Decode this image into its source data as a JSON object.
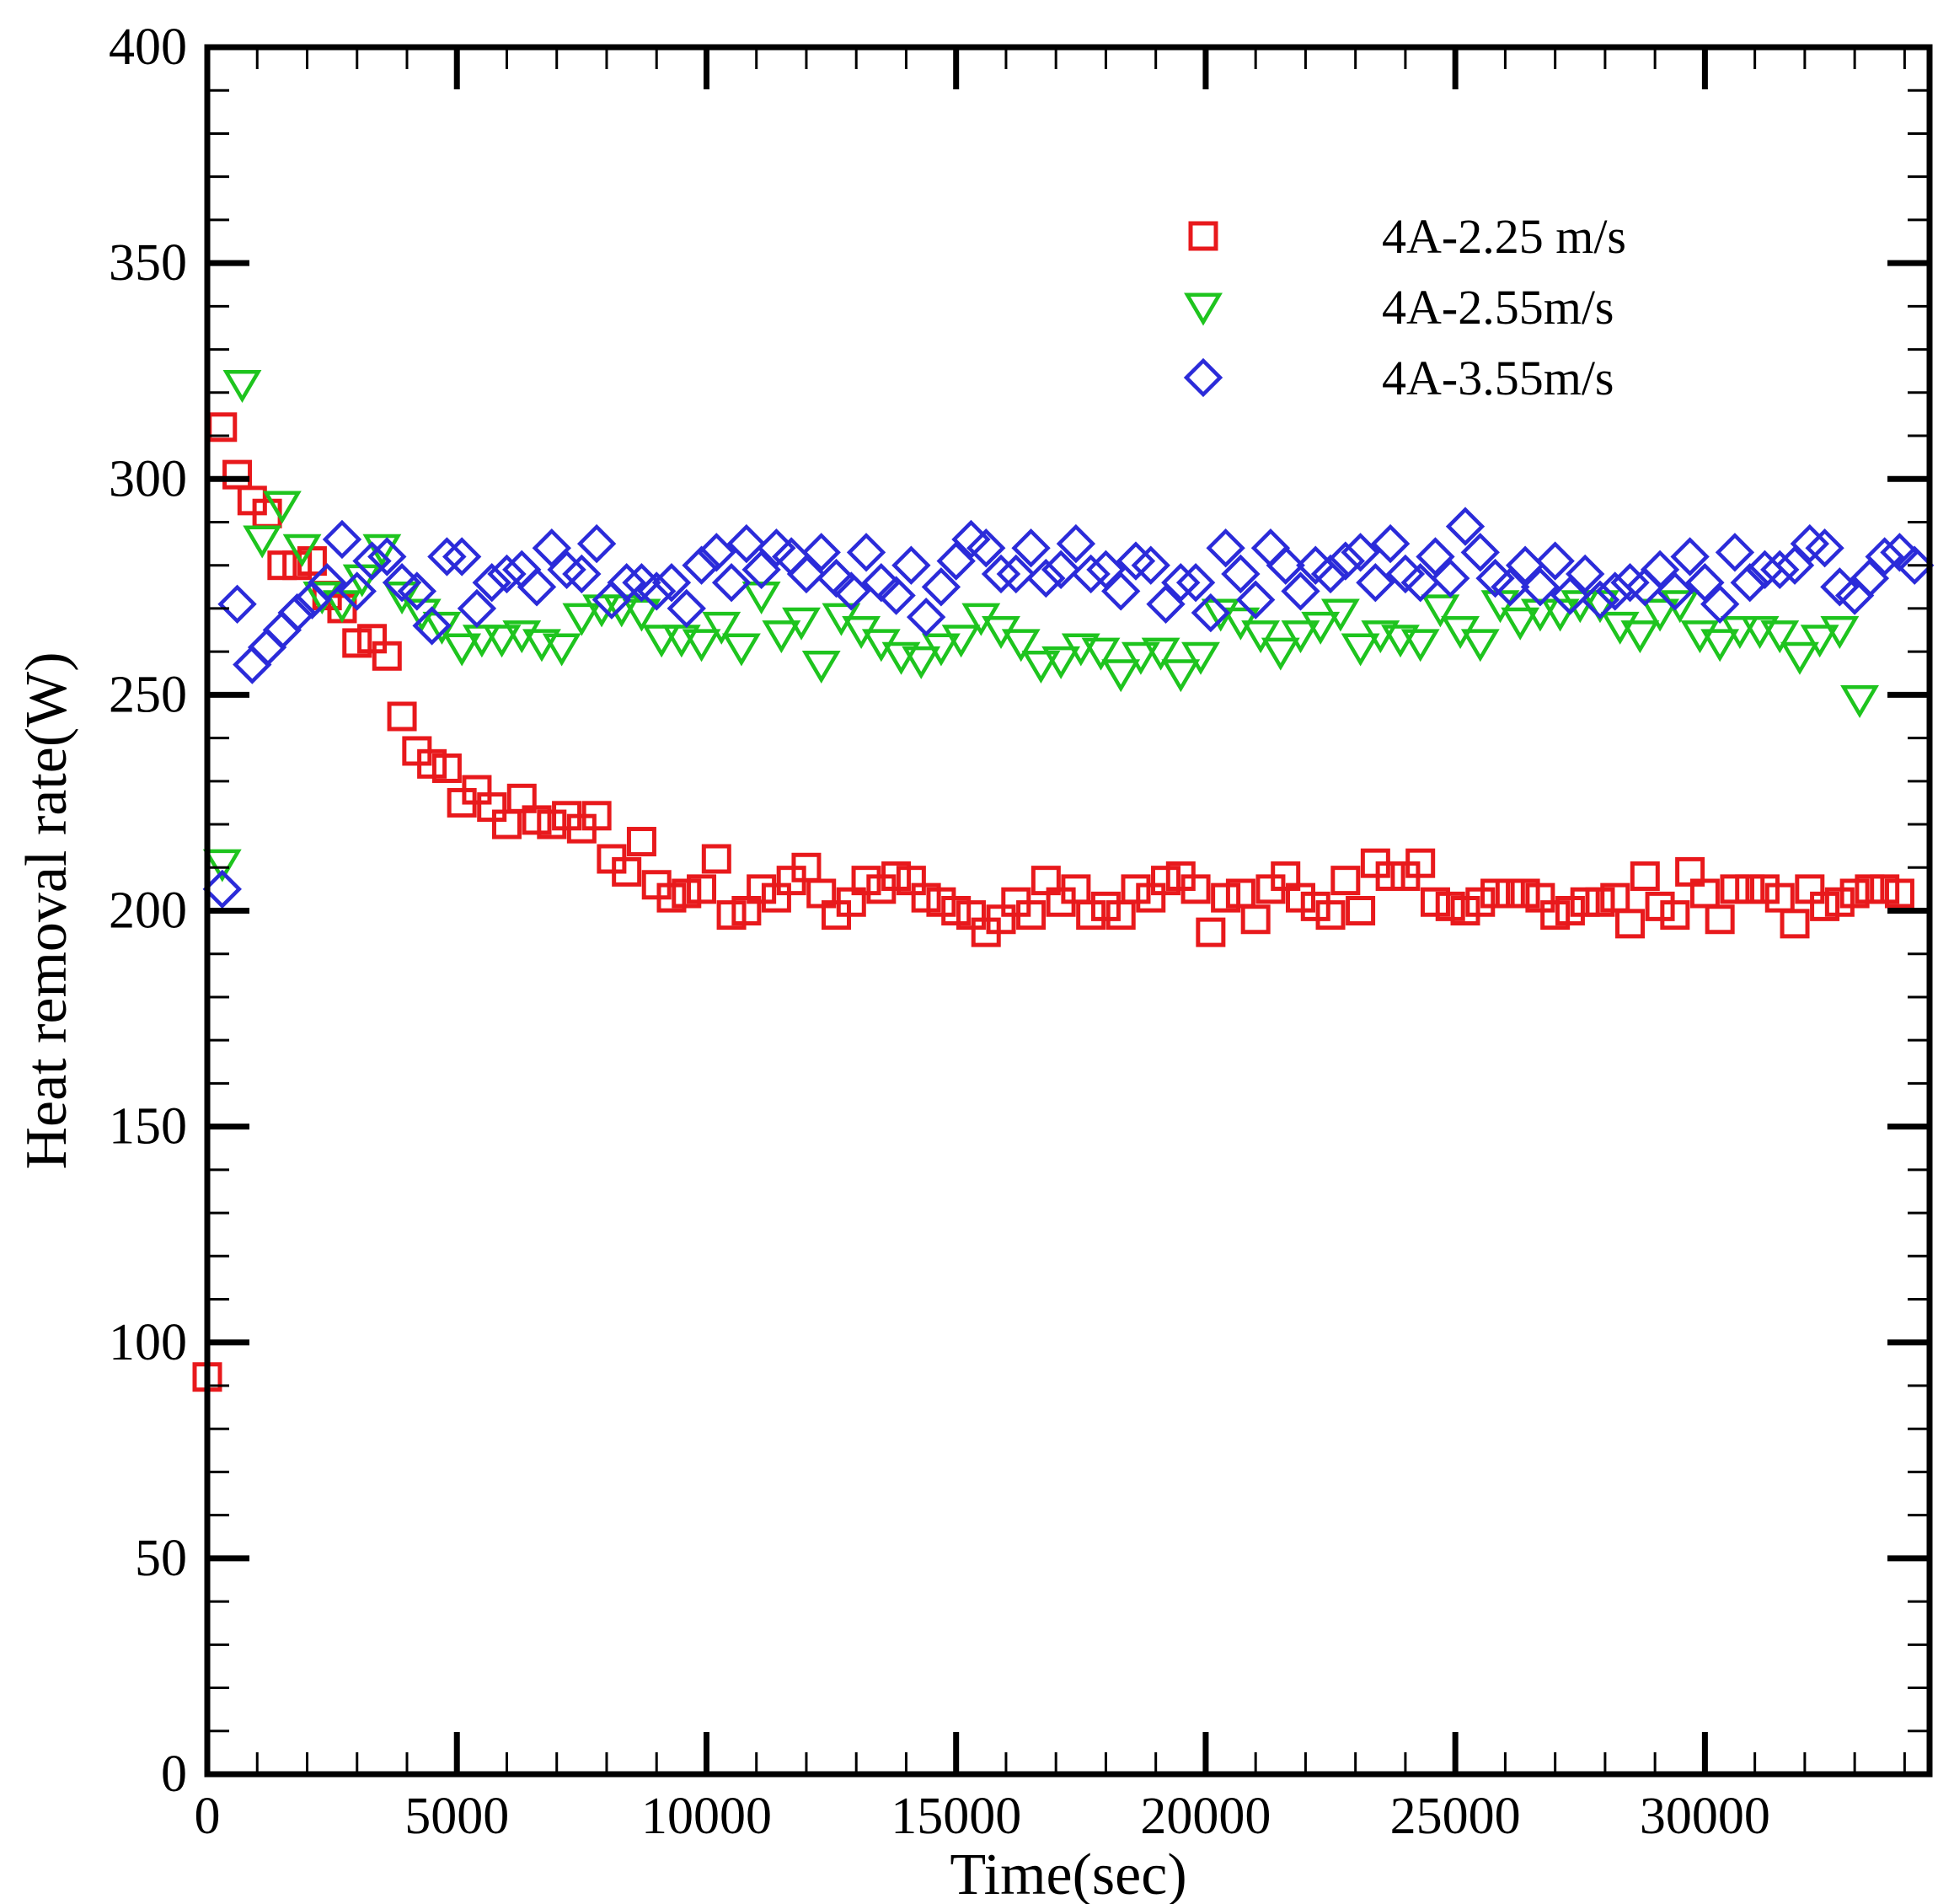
{
  "chart_data": {
    "type": "scatter",
    "xlabel": "Time(sec)",
    "ylabel": "Heat removal rate(W)",
    "xlim": [
      0,
      34500
    ],
    "ylim": [
      0,
      400
    ],
    "x_ticks": [
      0,
      5000,
      10000,
      15000,
      20000,
      25000,
      30000
    ],
    "y_ticks": [
      0,
      50,
      100,
      150,
      200,
      250,
      300,
      350,
      400
    ],
    "grid": false,
    "legend_position": "top-right",
    "series": [
      {
        "name": "4A-2.25 m/s",
        "marker": "square",
        "color": "#e8191c",
        "points": [
          [
            0,
            92
          ],
          [
            300,
            312
          ],
          [
            600,
            301
          ],
          [
            900,
            295
          ],
          [
            1200,
            292
          ],
          [
            1500,
            280
          ],
          [
            1800,
            280
          ],
          [
            2100,
            281
          ],
          [
            2400,
            273
          ],
          [
            2700,
            270
          ],
          [
            3000,
            262
          ],
          [
            3300,
            263
          ],
          [
            3600,
            259
          ],
          [
            3900,
            245
          ],
          [
            4200,
            237
          ],
          [
            4500,
            234
          ],
          [
            4800,
            233
          ],
          [
            5100,
            225
          ],
          [
            5400,
            228
          ],
          [
            5700,
            224
          ],
          [
            6000,
            220
          ],
          [
            6300,
            226
          ],
          [
            6600,
            221
          ],
          [
            6900,
            220
          ],
          [
            7200,
            222
          ],
          [
            7500,
            219
          ],
          [
            7800,
            222
          ],
          [
            8100,
            212
          ],
          [
            8400,
            209
          ],
          [
            8700,
            216
          ],
          [
            9000,
            206
          ],
          [
            9300,
            203
          ],
          [
            9600,
            204
          ],
          [
            9900,
            205
          ],
          [
            10200,
            212
          ],
          [
            10500,
            199
          ],
          [
            10800,
            200
          ],
          [
            11100,
            205
          ],
          [
            11400,
            203
          ],
          [
            11700,
            207
          ],
          [
            12000,
            210
          ],
          [
            12300,
            204
          ],
          [
            12600,
            199
          ],
          [
            12900,
            202
          ],
          [
            13200,
            207
          ],
          [
            13500,
            205
          ],
          [
            13800,
            208
          ],
          [
            14100,
            207
          ],
          [
            14400,
            203
          ],
          [
            14700,
            202
          ],
          [
            15000,
            200
          ],
          [
            15300,
            199
          ],
          [
            15600,
            195
          ],
          [
            15900,
            198
          ],
          [
            16200,
            202
          ],
          [
            16500,
            199
          ],
          [
            16800,
            207
          ],
          [
            17100,
            202
          ],
          [
            17400,
            205
          ],
          [
            17700,
            199
          ],
          [
            18000,
            201
          ],
          [
            18300,
            199
          ],
          [
            18600,
            205
          ],
          [
            18900,
            203
          ],
          [
            19200,
            207
          ],
          [
            19500,
            208
          ],
          [
            19800,
            205
          ],
          [
            20100,
            195
          ],
          [
            20400,
            203
          ],
          [
            20700,
            204
          ],
          [
            21000,
            198
          ],
          [
            21300,
            205
          ],
          [
            21600,
            208
          ],
          [
            21900,
            203
          ],
          [
            22200,
            201
          ],
          [
            22500,
            199
          ],
          [
            22800,
            207
          ],
          [
            23100,
            200
          ],
          [
            23400,
            211
          ],
          [
            23700,
            208
          ],
          [
            24000,
            208
          ],
          [
            24300,
            211
          ],
          [
            24600,
            202
          ],
          [
            24900,
            201
          ],
          [
            25200,
            200
          ],
          [
            25500,
            202
          ],
          [
            25800,
            204
          ],
          [
            26100,
            204
          ],
          [
            26400,
            204
          ],
          [
            26700,
            203
          ],
          [
            27000,
            199
          ],
          [
            27300,
            200
          ],
          [
            27600,
            202
          ],
          [
            27900,
            202
          ],
          [
            28200,
            203
          ],
          [
            28500,
            197
          ],
          [
            28800,
            208
          ],
          [
            29100,
            201
          ],
          [
            29400,
            199
          ],
          [
            29700,
            209
          ],
          [
            30000,
            204
          ],
          [
            30300,
            198
          ],
          [
            30600,
            205
          ],
          [
            30900,
            205
          ],
          [
            31200,
            205
          ],
          [
            31500,
            203
          ],
          [
            31800,
            197
          ],
          [
            32100,
            205
          ],
          [
            32400,
            201
          ],
          [
            32700,
            202
          ],
          [
            33000,
            204
          ],
          [
            33300,
            205
          ],
          [
            33600,
            205
          ],
          [
            33900,
            204
          ]
        ]
      },
      {
        "name": "4A-2.55m/s",
        "marker": "triangle-down",
        "color": "#1ec41e",
        "points": [
          [
            300,
            211
          ],
          [
            700,
            322
          ],
          [
            1100,
            286
          ],
          [
            1500,
            294
          ],
          [
            1900,
            284
          ],
          [
            2300,
            273
          ],
          [
            2700,
            271
          ],
          [
            3100,
            277
          ],
          [
            3500,
            284
          ],
          [
            3900,
            273
          ],
          [
            4300,
            269
          ],
          [
            4700,
            266
          ],
          [
            5100,
            261
          ],
          [
            5500,
            263
          ],
          [
            5900,
            263
          ],
          [
            6300,
            264
          ],
          [
            6700,
            262
          ],
          [
            7100,
            261
          ],
          [
            7500,
            268
          ],
          [
            7900,
            270
          ],
          [
            8300,
            270
          ],
          [
            8700,
            269
          ],
          [
            9100,
            263
          ],
          [
            9500,
            263
          ],
          [
            9900,
            262
          ],
          [
            10300,
            266
          ],
          [
            10700,
            261
          ],
          [
            11100,
            273
          ],
          [
            11500,
            264
          ],
          [
            11900,
            267
          ],
          [
            12300,
            257
          ],
          [
            12700,
            268
          ],
          [
            13100,
            265
          ],
          [
            13500,
            262
          ],
          [
            13900,
            259
          ],
          [
            14300,
            258
          ],
          [
            14700,
            261
          ],
          [
            15100,
            263
          ],
          [
            15500,
            268
          ],
          [
            15900,
            265
          ],
          [
            16300,
            262
          ],
          [
            16700,
            257
          ],
          [
            17100,
            258
          ],
          [
            17500,
            261
          ],
          [
            17900,
            260
          ],
          [
            18300,
            255
          ],
          [
            18700,
            259
          ],
          [
            19100,
            260
          ],
          [
            19500,
            255
          ],
          [
            19900,
            259
          ],
          [
            20300,
            269
          ],
          [
            20700,
            267
          ],
          [
            21100,
            264
          ],
          [
            21500,
            260
          ],
          [
            21900,
            264
          ],
          [
            22300,
            266
          ],
          [
            22700,
            269
          ],
          [
            23100,
            261
          ],
          [
            23500,
            264
          ],
          [
            23900,
            263
          ],
          [
            24300,
            262
          ],
          [
            24700,
            270
          ],
          [
            25100,
            265
          ],
          [
            25500,
            262
          ],
          [
            25900,
            271
          ],
          [
            26300,
            267
          ],
          [
            26700,
            269
          ],
          [
            27100,
            269
          ],
          [
            27500,
            271
          ],
          [
            27900,
            271
          ],
          [
            28300,
            266
          ],
          [
            28700,
            264
          ],
          [
            29100,
            269
          ],
          [
            29500,
            271
          ],
          [
            29900,
            264
          ],
          [
            30300,
            262
          ],
          [
            30700,
            265
          ],
          [
            31100,
            265
          ],
          [
            31500,
            264
          ],
          [
            31900,
            259
          ],
          [
            32300,
            263
          ],
          [
            32700,
            265
          ],
          [
            33100,
            249
          ]
        ]
      },
      {
        "name": "4A-3.55m/s",
        "marker": "diamond",
        "color": "#2b2bd9",
        "points": [
          [
            300,
            205
          ],
          [
            600,
            271
          ],
          [
            900,
            257
          ],
          [
            1200,
            261
          ],
          [
            1500,
            265
          ],
          [
            1800,
            269
          ],
          [
            2100,
            272
          ],
          [
            2400,
            276
          ],
          [
            2700,
            286
          ],
          [
            3000,
            274
          ],
          [
            3300,
            281
          ],
          [
            3600,
            282
          ],
          [
            3900,
            276
          ],
          [
            4200,
            274
          ],
          [
            4500,
            266
          ],
          [
            4800,
            282
          ],
          [
            5100,
            282
          ],
          [
            5400,
            270
          ],
          [
            5700,
            276
          ],
          [
            6000,
            278
          ],
          [
            6300,
            279
          ],
          [
            6600,
            275
          ],
          [
            6900,
            284
          ],
          [
            7200,
            279
          ],
          [
            7500,
            278
          ],
          [
            7800,
            285
          ],
          [
            8100,
            272
          ],
          [
            8400,
            276
          ],
          [
            8700,
            276
          ],
          [
            9000,
            274
          ],
          [
            9300,
            276
          ],
          [
            9600,
            270
          ],
          [
            9900,
            280
          ],
          [
            10200,
            283
          ],
          [
            10500,
            276
          ],
          [
            10800,
            285
          ],
          [
            11100,
            279
          ],
          [
            11400,
            284
          ],
          [
            11700,
            282
          ],
          [
            12000,
            278
          ],
          [
            12300,
            283
          ],
          [
            12600,
            277
          ],
          [
            12900,
            274
          ],
          [
            13200,
            283
          ],
          [
            13500,
            276
          ],
          [
            13800,
            273
          ],
          [
            14100,
            280
          ],
          [
            14400,
            268
          ],
          [
            14700,
            275
          ],
          [
            15000,
            281
          ],
          [
            15300,
            286
          ],
          [
            15600,
            284
          ],
          [
            15900,
            278
          ],
          [
            16200,
            278
          ],
          [
            16500,
            284
          ],
          [
            16800,
            277
          ],
          [
            17100,
            279
          ],
          [
            17400,
            285
          ],
          [
            17700,
            278
          ],
          [
            18000,
            279
          ],
          [
            18300,
            274
          ],
          [
            18600,
            281
          ],
          [
            18900,
            280
          ],
          [
            19200,
            271
          ],
          [
            19500,
            276
          ],
          [
            19800,
            276
          ],
          [
            20100,
            269
          ],
          [
            20400,
            284
          ],
          [
            20700,
            278
          ],
          [
            21000,
            272
          ],
          [
            21300,
            284
          ],
          [
            21600,
            280
          ],
          [
            21900,
            274
          ],
          [
            22200,
            280
          ],
          [
            22500,
            278
          ],
          [
            22800,
            281
          ],
          [
            23100,
            283
          ],
          [
            23400,
            276
          ],
          [
            23700,
            285
          ],
          [
            24000,
            278
          ],
          [
            24300,
            276
          ],
          [
            24600,
            282
          ],
          [
            24900,
            277
          ],
          [
            25200,
            289
          ],
          [
            25500,
            283
          ],
          [
            25800,
            277
          ],
          [
            26100,
            275
          ],
          [
            26400,
            280
          ],
          [
            26700,
            275
          ],
          [
            27000,
            281
          ],
          [
            27300,
            273
          ],
          [
            27600,
            278
          ],
          [
            27900,
            272
          ],
          [
            28200,
            274
          ],
          [
            28500,
            276
          ],
          [
            28800,
            275
          ],
          [
            29100,
            279
          ],
          [
            29400,
            274
          ],
          [
            29700,
            282
          ],
          [
            30000,
            276
          ],
          [
            30300,
            271
          ],
          [
            30600,
            283
          ],
          [
            30900,
            276
          ],
          [
            31200,
            279
          ],
          [
            31500,
            279
          ],
          [
            31800,
            280
          ],
          [
            32100,
            285
          ],
          [
            32400,
            284
          ],
          [
            32700,
            275
          ],
          [
            33000,
            273
          ],
          [
            33300,
            277
          ],
          [
            33600,
            282
          ],
          [
            33900,
            283
          ],
          [
            34200,
            280
          ]
        ]
      }
    ]
  }
}
